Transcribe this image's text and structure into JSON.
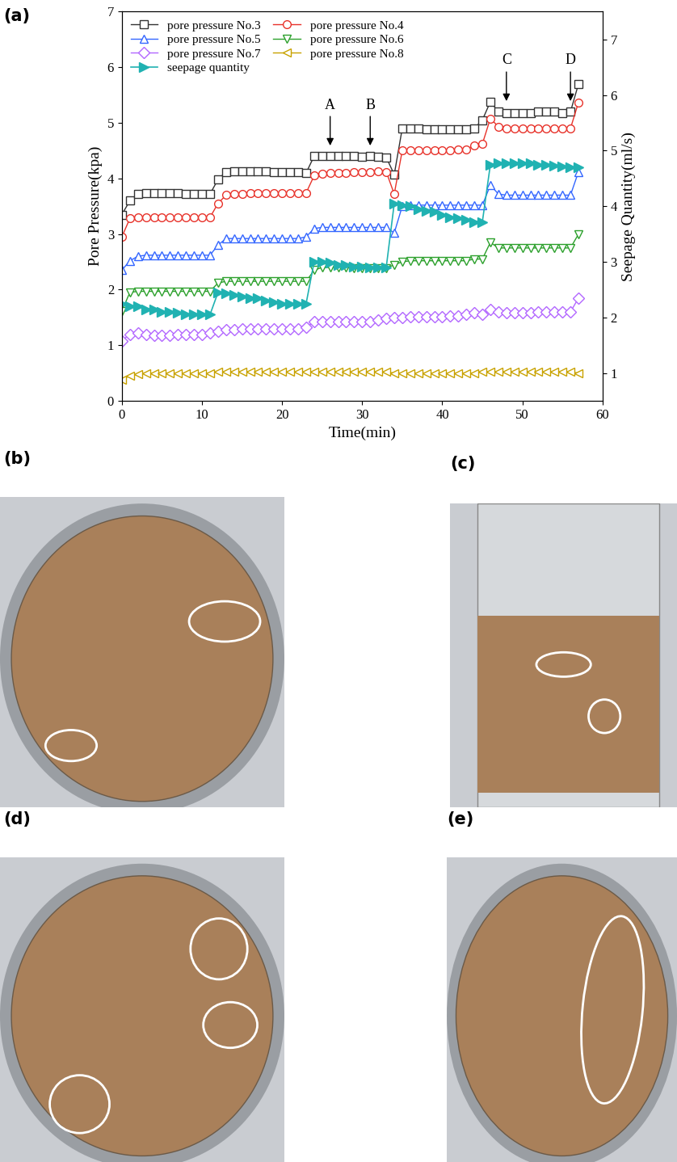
{
  "chart_data": {
    "type": "line",
    "label": "(a)",
    "x_label": "Time(min)",
    "y_label": "Pore Pressure(kpa)",
    "y2_label": "Seepage Quantity(ml/s)",
    "xlim": [
      0,
      60
    ],
    "xticks": [
      0,
      10,
      20,
      30,
      40,
      50,
      60
    ],
    "ylim": [
      0,
      7
    ],
    "yticks": [
      0,
      1,
      2,
      3,
      4,
      5,
      6,
      7
    ],
    "y2lim": [
      0.5,
      7.5
    ],
    "y2ticks": [
      1,
      2,
      3,
      4,
      5,
      6,
      7
    ],
    "grid": false,
    "legend": "upper left",
    "x": [
      0,
      1,
      2,
      3,
      4,
      5,
      6,
      7,
      8,
      9,
      10,
      11,
      12,
      13,
      14,
      15,
      16,
      17,
      18,
      19,
      20,
      21,
      22,
      23,
      24,
      25,
      26,
      27,
      28,
      29,
      30,
      31,
      32,
      33,
      34,
      35,
      36,
      37,
      38,
      39,
      40,
      41,
      42,
      43,
      44,
      45,
      46,
      47,
      48,
      49,
      50,
      51,
      52,
      53,
      54,
      55,
      56,
      57
    ],
    "series": [
      {
        "name": "pore pressure No.3",
        "color": "#333333",
        "marker": "square",
        "values": [
          3.35,
          3.6,
          3.72,
          3.73,
          3.73,
          3.73,
          3.73,
          3.73,
          3.72,
          3.72,
          3.72,
          3.72,
          3.98,
          4.12,
          4.13,
          4.13,
          4.13,
          4.13,
          4.13,
          4.12,
          4.12,
          4.11,
          4.11,
          4.1,
          4.4,
          4.4,
          4.4,
          4.4,
          4.4,
          4.4,
          4.39,
          4.4,
          4.39,
          4.38,
          4.07,
          4.9,
          4.9,
          4.9,
          4.88,
          4.88,
          4.88,
          4.88,
          4.88,
          4.88,
          4.9,
          5.05,
          5.38,
          5.2,
          5.18,
          5.18,
          5.18,
          5.18,
          5.2,
          5.2,
          5.2,
          5.18,
          5.2,
          5.7
        ]
      },
      {
        "name": "pore pressure No.4",
        "color": "#e8322a",
        "marker": "circle",
        "values": [
          2.95,
          3.28,
          3.3,
          3.3,
          3.3,
          3.3,
          3.3,
          3.3,
          3.3,
          3.3,
          3.3,
          3.3,
          3.55,
          3.7,
          3.72,
          3.72,
          3.73,
          3.73,
          3.73,
          3.74,
          3.74,
          3.74,
          3.74,
          3.74,
          4.05,
          4.08,
          4.1,
          4.1,
          4.1,
          4.12,
          4.12,
          4.12,
          4.13,
          4.12,
          3.72,
          4.5,
          4.5,
          4.5,
          4.5,
          4.5,
          4.5,
          4.5,
          4.52,
          4.52,
          4.6,
          4.62,
          5.08,
          4.93,
          4.9,
          4.9,
          4.9,
          4.9,
          4.9,
          4.9,
          4.9,
          4.9,
          4.9,
          5.37
        ]
      },
      {
        "name": "pore pressure No.5",
        "color": "#3366ff",
        "marker": "triangle_up",
        "values": [
          2.35,
          2.52,
          2.6,
          2.62,
          2.62,
          2.62,
          2.62,
          2.62,
          2.62,
          2.62,
          2.62,
          2.62,
          2.8,
          2.92,
          2.92,
          2.92,
          2.92,
          2.92,
          2.92,
          2.92,
          2.92,
          2.92,
          2.92,
          2.95,
          3.1,
          3.12,
          3.12,
          3.12,
          3.12,
          3.12,
          3.12,
          3.12,
          3.12,
          3.12,
          3.02,
          3.5,
          3.52,
          3.52,
          3.52,
          3.52,
          3.52,
          3.52,
          3.52,
          3.52,
          3.52,
          3.52,
          3.88,
          3.72,
          3.7,
          3.7,
          3.7,
          3.7,
          3.7,
          3.7,
          3.7,
          3.7,
          3.7,
          4.12
        ]
      },
      {
        "name": "pore pressure No.6",
        "color": "#2ca02c",
        "marker": "triangle_down",
        "values": [
          1.62,
          1.95,
          1.97,
          1.97,
          1.97,
          1.97,
          1.97,
          1.97,
          1.97,
          1.97,
          1.97,
          1.97,
          2.12,
          2.15,
          2.15,
          2.15,
          2.15,
          2.15,
          2.15,
          2.15,
          2.15,
          2.15,
          2.15,
          2.15,
          2.35,
          2.4,
          2.4,
          2.4,
          2.4,
          2.38,
          2.38,
          2.38,
          2.38,
          2.38,
          2.45,
          2.5,
          2.52,
          2.52,
          2.52,
          2.52,
          2.52,
          2.52,
          2.52,
          2.52,
          2.55,
          2.55,
          2.85,
          2.75,
          2.75,
          2.75,
          2.75,
          2.75,
          2.75,
          2.75,
          2.75,
          2.75,
          2.75,
          3.0
        ]
      },
      {
        "name": "pore pressure No.7",
        "color": "#b266ff",
        "marker": "diamond",
        "values": [
          1.08,
          1.2,
          1.22,
          1.2,
          1.18,
          1.18,
          1.18,
          1.2,
          1.2,
          1.2,
          1.2,
          1.22,
          1.25,
          1.28,
          1.28,
          1.3,
          1.3,
          1.3,
          1.3,
          1.3,
          1.3,
          1.3,
          1.3,
          1.32,
          1.42,
          1.42,
          1.42,
          1.42,
          1.42,
          1.42,
          1.42,
          1.42,
          1.45,
          1.48,
          1.5,
          1.5,
          1.52,
          1.52,
          1.52,
          1.52,
          1.52,
          1.53,
          1.53,
          1.55,
          1.58,
          1.55,
          1.65,
          1.6,
          1.58,
          1.58,
          1.58,
          1.58,
          1.6,
          1.6,
          1.6,
          1.6,
          1.6,
          1.85
        ]
      },
      {
        "name": "pore pressure No.8",
        "color": "#c8a200",
        "marker": "triangle_left",
        "values": [
          0.38,
          0.45,
          0.48,
          0.5,
          0.5,
          0.5,
          0.5,
          0.5,
          0.5,
          0.5,
          0.5,
          0.5,
          0.52,
          0.52,
          0.52,
          0.52,
          0.52,
          0.52,
          0.52,
          0.52,
          0.52,
          0.52,
          0.52,
          0.52,
          0.52,
          0.52,
          0.52,
          0.52,
          0.52,
          0.52,
          0.52,
          0.52,
          0.52,
          0.52,
          0.5,
          0.5,
          0.5,
          0.5,
          0.5,
          0.5,
          0.5,
          0.5,
          0.5,
          0.5,
          0.5,
          0.52,
          0.52,
          0.52,
          0.52,
          0.52,
          0.52,
          0.52,
          0.52,
          0.52,
          0.52,
          0.52,
          0.52,
          0.5
        ]
      },
      {
        "name": "seepage quantity",
        "color": "#20b2b2",
        "marker": "triangle_right",
        "axis": "y2",
        "values": [
          2.25,
          2.2,
          2.2,
          2.15,
          2.15,
          2.1,
          2.1,
          2.08,
          2.05,
          2.05,
          2.05,
          2.05,
          2.45,
          2.43,
          2.4,
          2.38,
          2.35,
          2.35,
          2.3,
          2.28,
          2.25,
          2.25,
          2.25,
          2.25,
          3.0,
          3.0,
          2.98,
          2.95,
          2.95,
          2.92,
          2.92,
          2.9,
          2.9,
          2.9,
          4.05,
          4.02,
          4.0,
          3.95,
          3.92,
          3.9,
          3.85,
          3.8,
          3.78,
          3.75,
          3.72,
          3.72,
          4.75,
          4.78,
          4.78,
          4.78,
          4.78,
          4.78,
          4.75,
          4.75,
          4.73,
          4.72,
          4.7,
          4.7
        ]
      }
    ],
    "annotations": [
      {
        "text": "A",
        "x": 26,
        "y": 4.55
      },
      {
        "text": "B",
        "x": 31,
        "y": 4.55
      },
      {
        "text": "C",
        "x": 48,
        "y": 5.35
      },
      {
        "text": "D",
        "x": 56,
        "y": 5.35
      }
    ]
  },
  "photos": [
    {
      "label": "(b)"
    },
    {
      "label": "(c)"
    },
    {
      "label": "(d)"
    },
    {
      "label": "(e)"
    }
  ]
}
